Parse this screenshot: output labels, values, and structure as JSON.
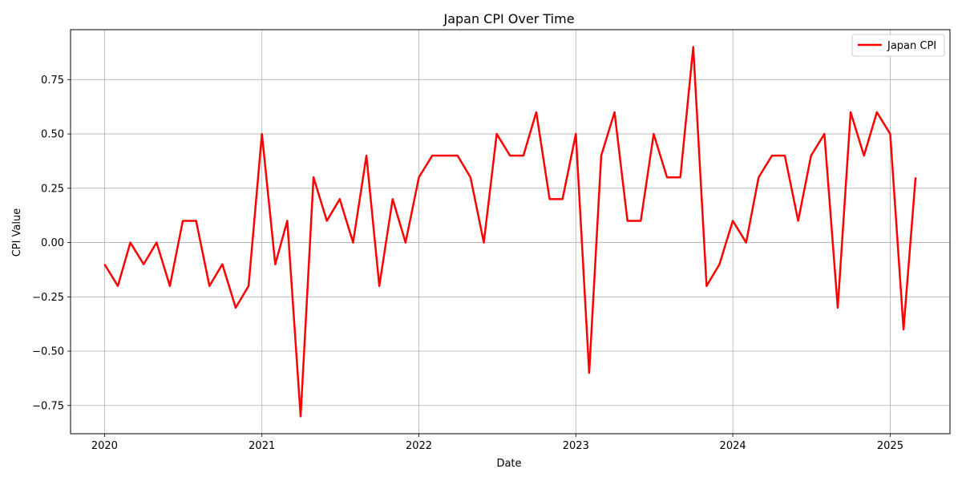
{
  "chart_data": {
    "type": "line",
    "title": "Japan CPI Over Time",
    "xlabel": "Date",
    "ylabel": "CPI Value",
    "xlim": [
      "2019-10-14",
      "2025-05-20"
    ],
    "ylim": [
      -0.88,
      0.98
    ],
    "x_ticks": [
      "2020-01-01",
      "2021-01-01",
      "2022-01-01",
      "2023-01-01",
      "2024-01-01",
      "2025-01-01"
    ],
    "x_tick_labels": [
      "2020",
      "2021",
      "2022",
      "2023",
      "2024",
      "2025"
    ],
    "y_ticks": [
      -0.75,
      -0.5,
      -0.25,
      0.0,
      0.25,
      0.5,
      0.75
    ],
    "y_tick_labels": [
      "−0.75",
      "−0.50",
      "−0.25",
      "0.00",
      "0.25",
      "0.50",
      "0.75"
    ],
    "grid": true,
    "legend_position": "top-right",
    "series": [
      {
        "name": "Japan CPI",
        "color": "#ff0000",
        "x": [
          "2020-01",
          "2020-02",
          "2020-03",
          "2020-04",
          "2020-05",
          "2020-06",
          "2020-07",
          "2020-08",
          "2020-09",
          "2020-10",
          "2020-11",
          "2020-12",
          "2021-01",
          "2021-02",
          "2021-03",
          "2021-04",
          "2021-05",
          "2021-06",
          "2021-07",
          "2021-08",
          "2021-09",
          "2021-10",
          "2021-11",
          "2021-12",
          "2022-01",
          "2022-02",
          "2022-03",
          "2022-04",
          "2022-05",
          "2022-06",
          "2022-07",
          "2022-08",
          "2022-09",
          "2022-10",
          "2022-11",
          "2022-12",
          "2023-01",
          "2023-02",
          "2023-03",
          "2023-04",
          "2023-05",
          "2023-06",
          "2023-07",
          "2023-08",
          "2023-09",
          "2023-10",
          "2023-11",
          "2023-12",
          "2024-01",
          "2024-02",
          "2024-03",
          "2024-04",
          "2024-05",
          "2024-06",
          "2024-07",
          "2024-08",
          "2024-09",
          "2024-10",
          "2024-11",
          "2024-12",
          "2025-01",
          "2025-02",
          "2025-03"
        ],
        "y": [
          -0.1,
          -0.2,
          0.0,
          -0.1,
          0.0,
          -0.2,
          0.1,
          0.1,
          -0.2,
          -0.1,
          -0.3,
          -0.2,
          0.5,
          -0.1,
          0.1,
          -0.8,
          0.3,
          0.1,
          0.2,
          0.0,
          0.4,
          -0.2,
          0.2,
          0.0,
          0.3,
          0.4,
          0.4,
          0.4,
          0.3,
          0.0,
          0.5,
          0.4,
          0.4,
          0.6,
          0.2,
          0.2,
          0.5,
          -0.6,
          0.4,
          0.6,
          0.1,
          0.1,
          0.5,
          0.3,
          0.3,
          0.9,
          -0.2,
          -0.1,
          0.1,
          0.0,
          0.3,
          0.4,
          0.4,
          0.1,
          0.4,
          0.5,
          -0.3,
          0.6,
          0.4,
          0.6,
          0.5,
          -0.4,
          0.3
        ]
      }
    ]
  }
}
